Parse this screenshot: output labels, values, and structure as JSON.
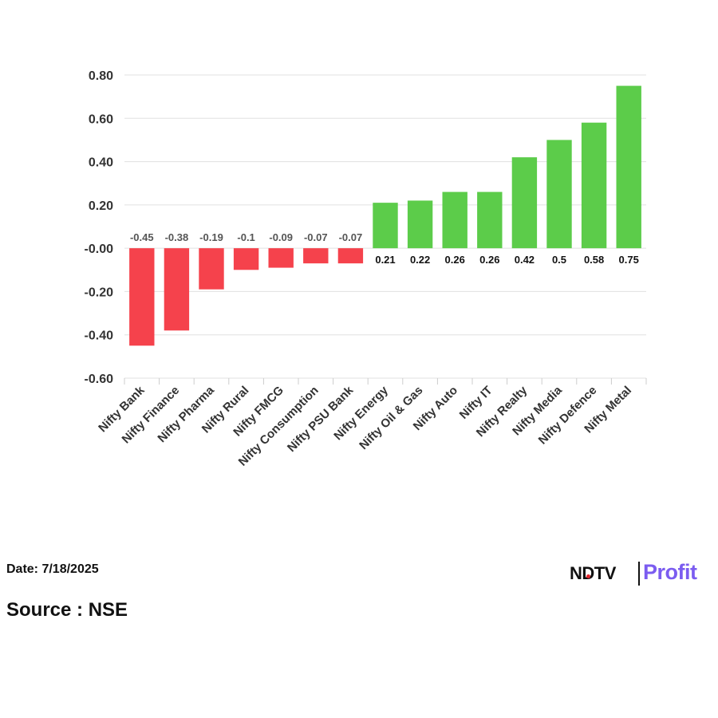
{
  "chart_data": {
    "type": "bar",
    "categories": [
      "Nifty Bank",
      "Nifty Finance",
      "Nifty Pharma",
      "Nifty Rural",
      "Nifty FMCG",
      "Nifty Consumption",
      "Nifty PSU Bank",
      "Nifty Energy",
      "Nifty Oil & Gas",
      "Nifty Auto",
      "Nifty IT",
      "Nifty Realty",
      "Nifty Media",
      "Nifty Defence",
      "Nifty Metal"
    ],
    "values": [
      -0.45,
      -0.38,
      -0.19,
      -0.1,
      -0.09,
      -0.07,
      -0.07,
      0.21,
      0.22,
      0.26,
      0.26,
      0.42,
      0.5,
      0.58,
      0.75
    ],
    "data_labels": [
      "-0.45",
      "-0.38",
      "-0.19",
      "-0.1",
      "-0.09",
      "-0.07",
      "-0.07",
      "0.21",
      "0.22",
      "0.26",
      "0.26",
      "0.42",
      "0.5",
      "0.58",
      "0.75"
    ],
    "y_ticks": [
      0.8,
      0.6,
      0.4,
      0.2,
      0.0,
      -0.2,
      -0.4,
      -0.6
    ],
    "y_tick_labels": [
      "0.80",
      "0.60",
      "0.40",
      "0.20",
      "-0.00",
      "-0.20",
      "-0.40",
      "-0.60"
    ],
    "ylim": [
      -0.6,
      0.8
    ],
    "grid": true,
    "colors": {
      "negative": "#f5424c",
      "positive": "#5ccc4a",
      "neg_label": "#555555",
      "pos_label": "#111111"
    }
  },
  "footer": {
    "date": "Date: 7/18/2025",
    "source": "Source : NSE"
  },
  "logo": {
    "ndtv": "NDTV",
    "profit": "Profit"
  }
}
